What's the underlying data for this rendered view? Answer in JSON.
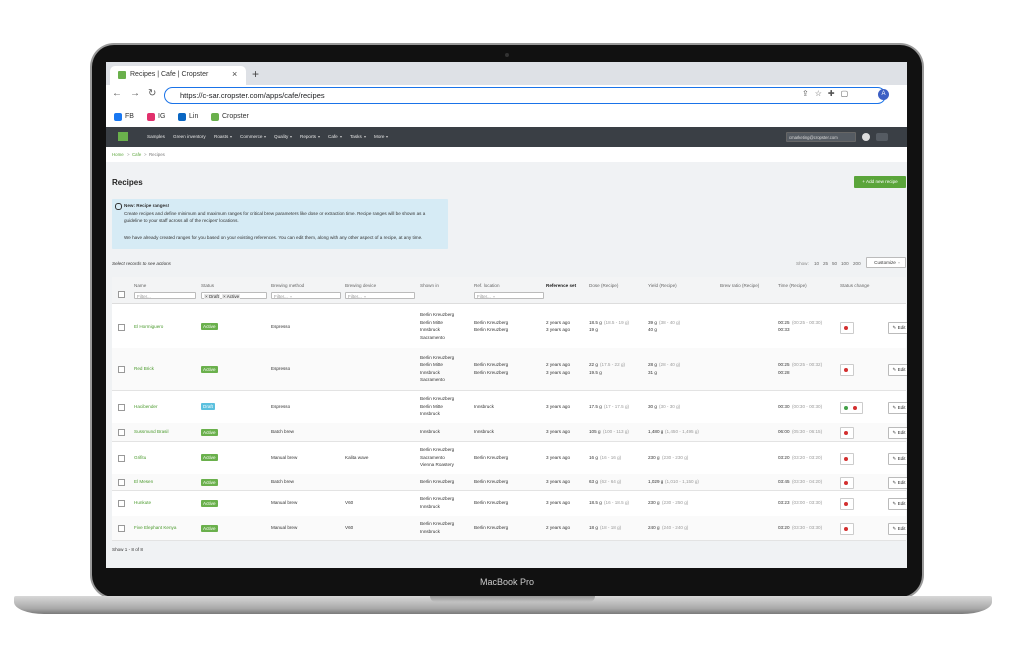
{
  "browser": {
    "tab_title": "Recipes | Cafe | Cropster",
    "url": "https://c-sar.cropster.com/apps/cafe/recipes",
    "bookmarks": [
      "FB",
      "IG",
      "Lin",
      "Cropster"
    ]
  },
  "device_label": "MacBook Pro",
  "nav": {
    "items": [
      {
        "label": "Samples",
        "menu": false
      },
      {
        "label": "Green inventory",
        "menu": false
      },
      {
        "label": "Roasts",
        "menu": true
      },
      {
        "label": "Commerce",
        "menu": true
      },
      {
        "label": "Quality",
        "menu": true
      },
      {
        "label": "Reports",
        "menu": true
      },
      {
        "label": "Cafe",
        "menu": true
      },
      {
        "label": "Tasks",
        "menu": true
      },
      {
        "label": "More",
        "menu": true
      }
    ],
    "user": "cmarketing@cropster.com"
  },
  "breadcrumb": [
    "Home",
    "Cafe",
    "Recipes"
  ],
  "page": {
    "title": "Recipes",
    "add_button": "Add new recipe",
    "info": {
      "title": "New: Recipe ranges!",
      "text1": "Create recipes and define minimum and maximum ranges for critical brew parameters like dose or extraction time. Recipe ranges will be shown as a guideline to your staff across all of the recipes' locations.",
      "text2": "We have already created ranges for you based on your existing references. You can edit them, along with any other aspect of a recipe, at any time."
    },
    "select_hint": "Select records to see actions",
    "show_label": "Show:",
    "page_sizes": [
      10,
      25,
      50,
      100,
      200
    ],
    "customize": "Customize",
    "footer": "Show 1 - 8 of 8"
  },
  "table": {
    "edit_label": "Edit",
    "columns": [
      {
        "label": "Name",
        "filter": "Filter..."
      },
      {
        "label": "Status",
        "chips": [
          "Draft",
          "Active"
        ]
      },
      {
        "label": "Brewing method",
        "filter": "Filter..."
      },
      {
        "label": "Brewing device",
        "filter": "Filter..."
      },
      {
        "label": "Shown in"
      },
      {
        "label": "Ref. location",
        "filter": "Filter..."
      },
      {
        "label": "Reference set"
      },
      {
        "label": "Dose (Recipe)"
      },
      {
        "label": "Yield (Recipe)"
      },
      {
        "label": "Brew ratio (Recipe)"
      },
      {
        "label": "Time (Recipe)"
      },
      {
        "label": "Status change"
      }
    ],
    "rows": [
      {
        "name": "El Hormiguero",
        "status": "Active",
        "method": "Espresso",
        "device": "",
        "shown_in": [
          "Berlin Kreuzberg",
          "Berlin Mitte",
          "Innsbruck",
          "Sacramento"
        ],
        "ref_location": [
          "Berlin Kreuzberg",
          "Berlin Kreuzberg"
        ],
        "reference_set": [
          "2 years ago",
          "3 years ago"
        ],
        "dose": [
          {
            "main": "18.5 g",
            "range": "(18.5 - 19 g)"
          },
          {
            "main": "19 g"
          }
        ],
        "yield": [
          {
            "main": "39 g",
            "range": "(38 - 40 g)"
          },
          {
            "main": "40 g"
          }
        ],
        "time": [
          {
            "main": "00:25",
            "range": "(00:25 - 00:30)"
          },
          {
            "main": "00:33"
          }
        ],
        "status_change": [
          "#d32f2f"
        ]
      },
      {
        "name": "Red Brick",
        "status": "Active",
        "method": "Espresso",
        "device": "",
        "shown_in": [
          "Berlin Kreuzberg",
          "Berlin Mitte",
          "Innsbruck",
          "Sacramento"
        ],
        "ref_location": [
          "Berlin Kreuzberg",
          "Berlin Kreuzberg"
        ],
        "reference_set": [
          "2 years ago",
          "3 years ago"
        ],
        "dose": [
          {
            "main": "22 g",
            "range": "(17.5 - 22 g)"
          },
          {
            "main": "19.5 g"
          }
        ],
        "yield": [
          {
            "main": "28 g",
            "range": "(28 - 40 g)"
          },
          {
            "main": "31 g"
          }
        ],
        "time": [
          {
            "main": "00:25",
            "range": "(00:25 - 00:32)"
          },
          {
            "main": "00:28"
          }
        ],
        "status_change": [
          "#d32f2f"
        ]
      },
      {
        "name": "Hacibender",
        "status": "Draft",
        "method": "Espresso",
        "device": "",
        "shown_in": [
          "Berlin Kreuzberg",
          "Berlin Mitte",
          "Innsbruck"
        ],
        "ref_location": [
          "Innsbruck"
        ],
        "reference_set": [
          "3 years ago"
        ],
        "dose": [
          {
            "main": "17.5 g",
            "range": "(17 - 17.5 g)"
          }
        ],
        "yield": [
          {
            "main": "30 g",
            "range": "(30 - 30 g)"
          }
        ],
        "time": [
          {
            "main": "00:30",
            "range": "(00:30 - 00:30)"
          }
        ],
        "status_change": [
          "#43a047",
          "#d32f2f"
        ]
      },
      {
        "name": "Sussmund Brasil",
        "status": "Active",
        "method": "Batch brew",
        "device": "",
        "shown_in": [
          "Innsbruck"
        ],
        "ref_location": [
          "Innsbruck"
        ],
        "reference_set": [
          "3 years ago"
        ],
        "dose": [
          {
            "main": "105 g",
            "range": "(100 - 113 g)"
          }
        ],
        "yield": [
          {
            "main": "1,480 g",
            "range": "(1,450 - 1,495 g)"
          }
        ],
        "time": [
          {
            "main": "06:00",
            "range": "(05:30 - 06:15)"
          }
        ],
        "status_change": [
          "#d32f2f"
        ]
      },
      {
        "name": "Grifitu",
        "status": "Active",
        "method": "Manual brew",
        "device": "Kalita wave",
        "shown_in": [
          "Berlin Kreuzberg",
          "Sacramento",
          "Vienna Roastery"
        ],
        "ref_location": [
          "Berlin Kreuzberg"
        ],
        "reference_set": [
          "3 years ago"
        ],
        "dose": [
          {
            "main": "16 g",
            "range": "(16 - 16 g)"
          }
        ],
        "yield": [
          {
            "main": "230 g",
            "range": "(230 - 230 g)"
          }
        ],
        "time": [
          {
            "main": "03:20",
            "range": "(03:20 - 03:20)"
          }
        ],
        "status_change": [
          "#d32f2f"
        ]
      },
      {
        "name": "El Mesen",
        "status": "Active",
        "method": "Batch brew",
        "device": "",
        "shown_in": [
          "Berlin Kreuzberg"
        ],
        "ref_location": [
          "Berlin Kreuzberg"
        ],
        "reference_set": [
          "3 years ago"
        ],
        "dose": [
          {
            "main": "63 g",
            "range": "(62 - 64 g)"
          }
        ],
        "yield": [
          {
            "main": "1,029 g",
            "range": "(1,010 - 1,150 g)"
          }
        ],
        "time": [
          {
            "main": "03:45",
            "range": "(03:30 - 04:20)"
          }
        ],
        "status_change": [
          "#d32f2f"
        ]
      },
      {
        "name": "Hunkute",
        "status": "Active",
        "method": "Manual brew",
        "device": "V60",
        "shown_in": [
          "Berlin Kreuzberg",
          "Innsbruck"
        ],
        "ref_location": [
          "Berlin Kreuzberg"
        ],
        "reference_set": [
          "3 years ago"
        ],
        "dose": [
          {
            "main": "18.5 g",
            "range": "(16 - 18.5 g)"
          }
        ],
        "yield": [
          {
            "main": "230 g",
            "range": "(230 - 250 g)"
          }
        ],
        "time": [
          {
            "main": "03:23",
            "range": "(03:00 - 03:30)"
          }
        ],
        "status_change": [
          "#d32f2f"
        ]
      },
      {
        "name": "Five Elephant Kenya",
        "status": "Active",
        "method": "Manual brew",
        "device": "V60",
        "shown_in": [
          "Berlin Kreuzberg",
          "Innsbruck"
        ],
        "ref_location": [
          "Berlin Kreuzberg"
        ],
        "reference_set": [
          "2 years ago"
        ],
        "dose": [
          {
            "main": "18 g",
            "range": "(18 - 18 g)"
          }
        ],
        "yield": [
          {
            "main": "240 g",
            "range": "(240 - 240 g)"
          }
        ],
        "time": [
          {
            "main": "03:20",
            "range": "(03:30 - 03:30)"
          }
        ],
        "status_change": [
          "#d32f2f"
        ]
      }
    ]
  }
}
